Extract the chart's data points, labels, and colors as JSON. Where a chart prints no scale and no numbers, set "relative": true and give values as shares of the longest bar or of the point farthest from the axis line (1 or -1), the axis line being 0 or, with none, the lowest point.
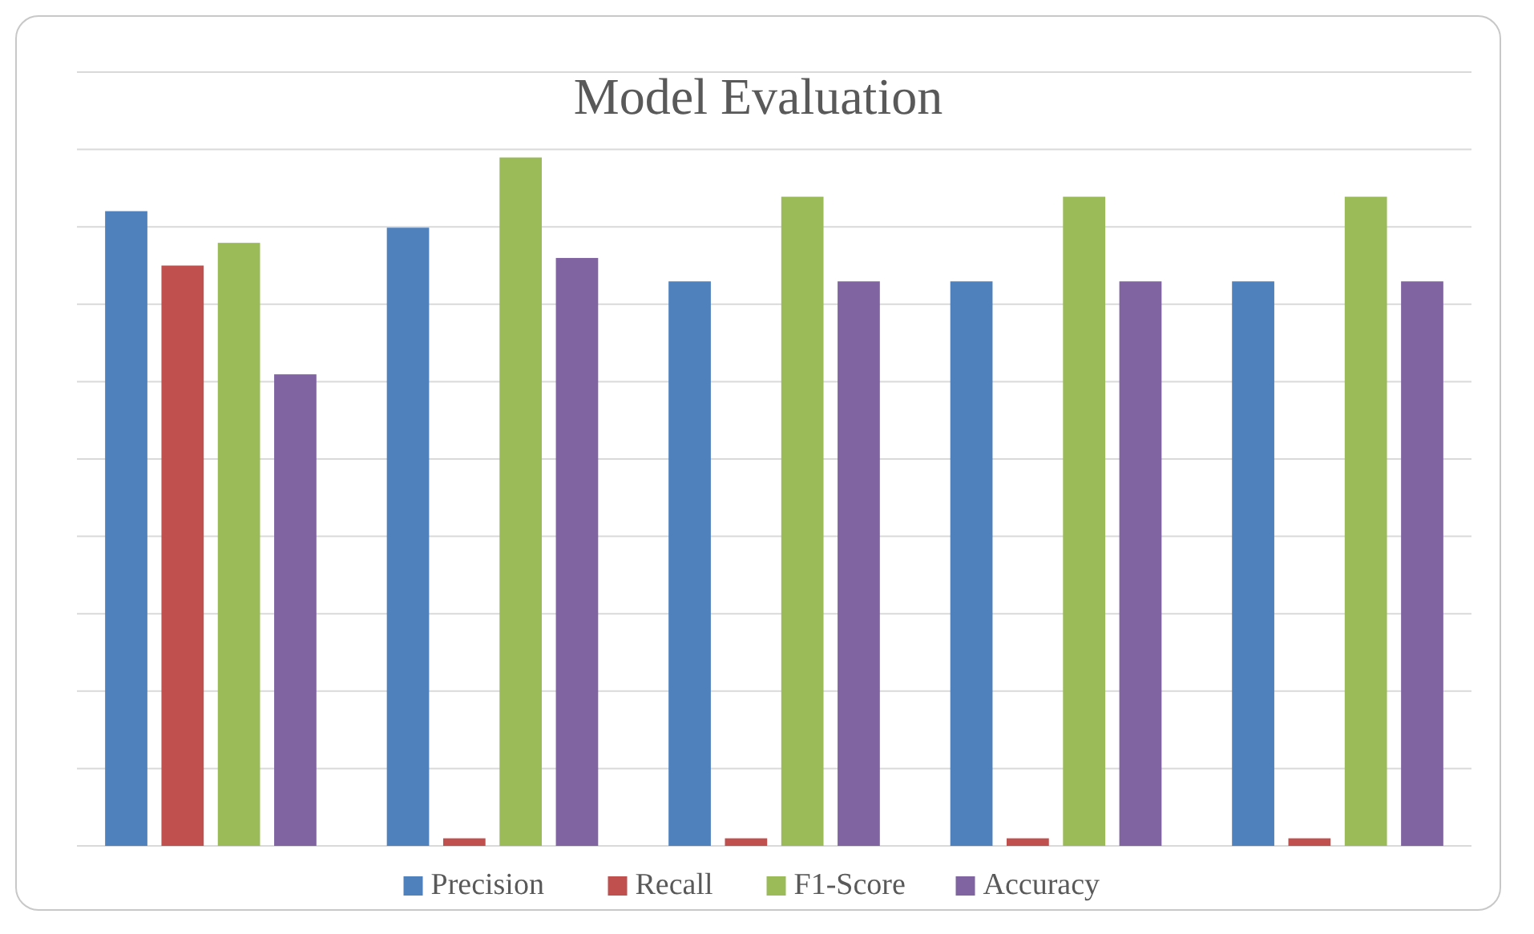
{
  "chart_data": {
    "type": "bar",
    "title": "Model Evaluation",
    "relative": true,
    "categories": [
      null,
      null,
      null,
      null,
      null
    ],
    "series": [
      {
        "name": "Precision",
        "color": "#4f81bd",
        "values": [
          0.922,
          0.898,
          0.82,
          0.82,
          0.82
        ]
      },
      {
        "name": "Recall",
        "color": "#c0504d",
        "values": [
          0.843,
          0.011,
          0.011,
          0.011,
          0.011
        ]
      },
      {
        "name": "F1-Score",
        "color": "#9bbb59",
        "values": [
          0.876,
          1,
          0.943,
          0.943,
          0.943
        ]
      },
      {
        "name": "Accuracy",
        "color": "#8064a2",
        "values": [
          0.685,
          0.854,
          0.82,
          0.82,
          0.82
        ]
      }
    ],
    "grid": "y",
    "legend": "bottom"
  }
}
